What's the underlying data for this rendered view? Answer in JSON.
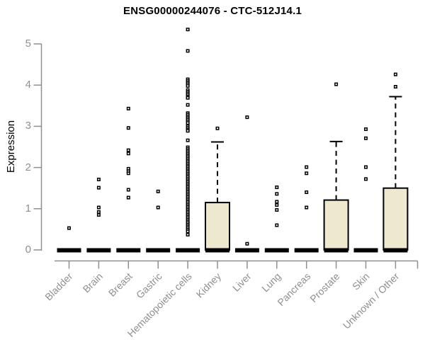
{
  "page": {
    "background": "#ffffff"
  },
  "chart_data": {
    "type": "box",
    "title": "ENSG00000244076 - CTC-512J14.1",
    "ylabel": "Expression",
    "xlabel": "",
    "ylim": [
      0,
      5
    ],
    "yticks": [
      0,
      1,
      2,
      3,
      4,
      5
    ],
    "grid": false,
    "legend": false,
    "colors": {
      "box_fill": "#ede8ce",
      "box_border": "#000000",
      "median": "#000000",
      "whisker": "#000000",
      "outlier": "#000000",
      "outlier_center": "#ffffff",
      "axis": "#8f8f8f",
      "tick_label": "#8f8f8f",
      "title": "#000000"
    },
    "categories": [
      "Bladder",
      "Brain",
      "Breast",
      "Gastric",
      "Hematopoietic cells",
      "Kidney",
      "Liver",
      "Lung",
      "Pancreas",
      "Prostate",
      "Skin",
      "Unknown / Other"
    ],
    "series": [
      {
        "name": "Bladder",
        "median": 0,
        "q1": 0,
        "q3": 0,
        "whisker_low": 0,
        "whisker_high": 0,
        "outliers": [
          0.53
        ]
      },
      {
        "name": "Brain",
        "median": 0,
        "q1": 0,
        "q3": 0,
        "whisker_low": 0,
        "whisker_high": 0,
        "outliers": [
          1.71,
          1.51,
          1.03,
          0.92,
          0.85
        ]
      },
      {
        "name": "Breast",
        "median": 0,
        "q1": 0,
        "q3": 0,
        "whisker_low": 0,
        "whisker_high": 0,
        "outliers": [
          3.43,
          2.96,
          2.42,
          2.34,
          1.97,
          1.91,
          1.86,
          1.46,
          1.27
        ]
      },
      {
        "name": "Gastric",
        "median": 0,
        "q1": 0,
        "q3": 0,
        "whisker_low": 0,
        "whisker_high": 0,
        "outliers": [
          1.42,
          1.03
        ]
      },
      {
        "name": "Hematopoietic cells",
        "median": 0,
        "q1": 0,
        "q3": 0,
        "whisker_low": 0,
        "whisker_high": 0,
        "outliers": [
          5.35,
          4.83,
          4.14,
          4.1,
          4.06,
          4.02,
          3.98,
          3.88,
          3.84,
          3.8,
          3.76,
          3.72,
          3.69,
          3.52,
          3.32,
          3.28,
          3.24,
          3.2,
          3.16,
          3.12,
          3.08,
          3.0,
          2.96,
          2.92,
          2.89,
          2.66,
          2.49,
          2.45,
          2.41,
          2.37,
          2.33,
          2.29,
          2.25,
          2.21,
          2.17,
          2.13,
          2.09,
          2.05,
          2.01,
          1.97,
          1.93,
          1.89,
          1.85,
          1.81,
          1.77,
          1.73,
          1.69,
          1.65,
          1.61,
          1.57,
          1.53,
          1.49,
          1.45,
          1.41,
          1.37,
          1.33,
          1.29,
          1.25,
          1.21,
          1.17,
          1.13,
          1.09,
          1.05,
          1.01,
          0.97,
          0.93,
          0.89,
          0.85,
          0.81,
          0.77,
          0.73,
          0.69,
          0.65,
          0.61,
          0.57,
          0.53,
          0.49,
          0.45,
          0.37
        ]
      },
      {
        "name": "Kidney",
        "median": 0,
        "q1": 0,
        "q3": 1.15,
        "whisker_low": 0,
        "whisker_high": 2.62,
        "outliers": [
          2.95
        ]
      },
      {
        "name": "Liver",
        "median": 0,
        "q1": 0,
        "q3": 0,
        "whisker_low": 0,
        "whisker_high": 0,
        "outliers": [
          3.22,
          0.15
        ]
      },
      {
        "name": "Lung",
        "median": 0,
        "q1": 0,
        "q3": 0,
        "whisker_low": 0,
        "whisker_high": 0,
        "outliers": [
          1.52,
          1.36,
          1.17,
          1.09,
          0.97,
          0.6
        ]
      },
      {
        "name": "Pancreas",
        "median": 0,
        "q1": 0,
        "q3": 0,
        "whisker_low": 0,
        "whisker_high": 0,
        "outliers": [
          2.01,
          1.86,
          1.4,
          1.03
        ]
      },
      {
        "name": "Prostate",
        "median": 0,
        "q1": 0,
        "q3": 1.21,
        "whisker_low": 0,
        "whisker_high": 2.63,
        "outliers": [
          4.02
        ]
      },
      {
        "name": "Skin",
        "median": 0,
        "q1": 0,
        "q3": 0,
        "whisker_low": 0,
        "whisker_high": 0,
        "outliers": [
          2.93,
          2.71,
          2.01,
          1.72
        ]
      },
      {
        "name": "Unknown / Other",
        "median": 0,
        "q1": 0,
        "q3": 1.5,
        "whisker_low": 0,
        "whisker_high": 3.72,
        "outliers": [
          4.26,
          3.96
        ]
      }
    ]
  }
}
